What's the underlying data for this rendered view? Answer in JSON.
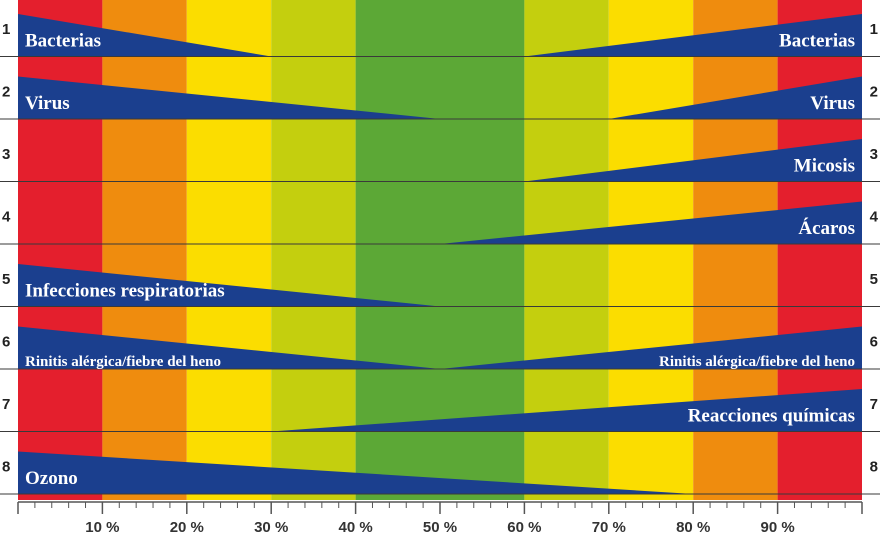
{
  "chart_data": {
    "type": "area",
    "title": "",
    "xlabel": "",
    "ylabel": "",
    "x_unit": "%",
    "xlim": [
      0,
      100
    ],
    "x_ticks": [
      "10 %",
      "20 %",
      "30 %",
      "40 %",
      "50 %",
      "60 %",
      "70 %",
      "80 %",
      "90 %"
    ],
    "x_tick_values": [
      10,
      20,
      30,
      40,
      50,
      60,
      70,
      80,
      90
    ],
    "row_numbers": [
      "1",
      "2",
      "3",
      "4",
      "5",
      "6",
      "7",
      "8"
    ],
    "zones": [
      {
        "from": 0,
        "to": 10,
        "color": "#e41f2d"
      },
      {
        "from": 10,
        "to": 20,
        "color": "#ef8c0e"
      },
      {
        "from": 20,
        "to": 30,
        "color": "#fbdd00"
      },
      {
        "from": 30,
        "to": 40,
        "color": "#c4cf0e"
      },
      {
        "from": 40,
        "to": 60,
        "color": "#5ca836"
      },
      {
        "from": 60,
        "to": 70,
        "color": "#c4cf0e"
      },
      {
        "from": 70,
        "to": 80,
        "color": "#fbdd00"
      },
      {
        "from": 80,
        "to": 90,
        "color": "#ef8c0e"
      },
      {
        "from": 90,
        "to": 100,
        "color": "#e41f2d"
      }
    ],
    "wedge_color": "#1b3f8e",
    "series": [
      {
        "row": 1,
        "left": {
          "label": "Bacterias",
          "end": 30
        },
        "right": {
          "label": "Bacterias",
          "end": 60
        }
      },
      {
        "row": 2,
        "left": {
          "label": "Virus",
          "end": 50
        },
        "right": {
          "label": "Virus",
          "end": 70
        }
      },
      {
        "row": 3,
        "right": {
          "label": "Micosis",
          "end": 60
        }
      },
      {
        "row": 4,
        "right": {
          "label": "Ácaros",
          "end": 50
        }
      },
      {
        "row": 5,
        "left": {
          "label": "Infecciones respiratorias",
          "end": 50
        }
      },
      {
        "row": 6,
        "left": {
          "label": "Rinitis alérgica/fiebre del heno",
          "end": 50
        },
        "right": {
          "label": "Rinitis alérgica/fiebre del heno",
          "end": 50
        }
      },
      {
        "row": 7,
        "right": {
          "label": "Reacciones químicas",
          "end": 30
        }
      },
      {
        "row": 8,
        "left": {
          "label": "Ozono",
          "end": 80
        }
      }
    ],
    "grid": true,
    "legend": "none"
  }
}
